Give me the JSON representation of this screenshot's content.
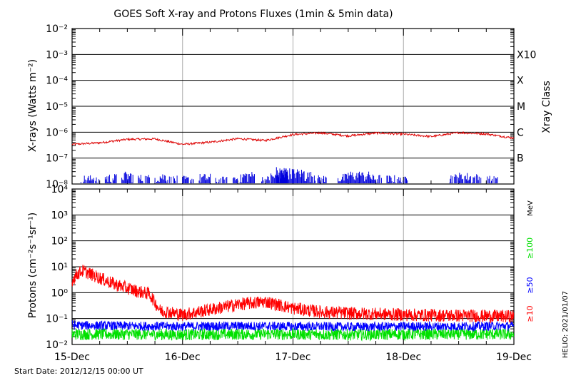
{
  "title": "GOES Soft X-ray and Protons Fluxes   (1min & 5min data)",
  "start_date": "Start Date: 2012/12/15 00:00 UT",
  "credit": "HELIO: 2021/01/07",
  "colors": {
    "background": "#ffffff",
    "axis": "#000000",
    "day_grid": "#aaaaaa",
    "xray_long": "#dd0000",
    "xray_short": "#0000dd",
    "p10": "#ff0000",
    "p50": "#0000ff",
    "p100": "#00e000"
  },
  "chart_data": [
    {
      "type": "line",
      "title": "GOES Soft X-ray and Protons Fluxes   (1min & 5min data)",
      "ylabel": "X-rays (Watts m⁻²)",
      "ylabel_right": "Xray Class",
      "yscale": "log",
      "ylim": [
        1e-08,
        0.01
      ],
      "x_range": [
        "2012-12-15",
        "2012-12-19"
      ],
      "y_tick_labels": [
        "10⁻⁸",
        "10⁻⁷",
        "10⁻⁶",
        "10⁻⁵",
        "10⁻⁴",
        "10⁻³",
        "10⁻²"
      ],
      "flare_classes": [
        {
          "label": "B",
          "level": 1e-07
        },
        {
          "label": "C",
          "level": 1e-06
        },
        {
          "label": "M",
          "level": 1e-05
        },
        {
          "label": "X",
          "level": 0.0001
        },
        {
          "label": "X10",
          "level": 0.001
        }
      ],
      "series": [
        {
          "color": "#dd0000",
          "x": [
            0.0,
            0.25,
            0.5,
            0.75,
            1.0,
            1.25,
            1.5,
            1.75,
            2.0,
            2.25,
            2.5,
            2.75,
            3.0,
            3.25,
            3.5,
            3.75,
            4.0
          ],
          "y": [
            3.4e-07,
            3.9e-07,
            5.3e-07,
            5.5e-07,
            3.4e-07,
            4.1e-07,
            5.6e-07,
            4.8e-07,
            8.1e-07,
            9.4e-07,
            7.2e-07,
            9.3e-07,
            8.4e-07,
            6.8e-07,
            9.6e-07,
            8.6e-07,
            5.9e-07
          ]
        },
        {
          "color": "#0000dd",
          "x": [
            0.08,
            0.15,
            0.3,
            0.45,
            0.6,
            0.75,
            0.85,
            1.0,
            1.15,
            1.3,
            1.45,
            1.55,
            1.7,
            1.8,
            1.85,
            1.9,
            2.0,
            2.1,
            2.2,
            2.4,
            2.5,
            2.6,
            2.7,
            2.85,
            2.95,
            3.4,
            3.5,
            3.6,
            3.75
          ],
          "y": [
            1.6e-08,
            1.3e-08,
            1.8e-08,
            2.2e-08,
            1.7e-08,
            2e-08,
            1.5e-08,
            1.5e-08,
            1.8e-08,
            1.4e-08,
            1.7e-08,
            2.2e-08,
            1.5e-08,
            2e-08,
            3.3e-08,
            3e-08,
            2.8e-08,
            2.2e-08,
            1.6e-08,
            1.8e-08,
            2.3e-08,
            2.2e-08,
            1.7e-08,
            1.6e-08,
            1.4e-08,
            1.8e-08,
            2e-08,
            1.8e-08,
            1.5e-08
          ]
        }
      ]
    },
    {
      "type": "line",
      "ylabel": "Protons (cm⁻²s⁻¹sr⁻¹)",
      "units": "MeV",
      "yscale": "log",
      "ylim": [
        0.01,
        10000
      ],
      "reference_level": 10,
      "y_tick_labels": [
        "10⁻²",
        "10⁻¹",
        "10⁰",
        "10¹",
        "10²",
        "10³",
        "10⁴"
      ],
      "x_tick_labels": [
        "15-Dec",
        "16-Dec",
        "17-Dec",
        "18-Dec",
        "19-Dec"
      ],
      "series": [
        {
          "name": "≥10",
          "color": "#ff0000",
          "x": [
            0.0,
            0.05,
            0.1,
            0.2,
            0.3,
            0.4,
            0.5,
            0.6,
            0.7,
            0.8,
            0.9,
            1.0,
            1.25,
            1.5,
            1.75,
            2.0,
            2.25,
            2.5,
            2.75,
            3.0,
            3.5,
            4.0
          ],
          "y": [
            3.0,
            5.5,
            7.0,
            4.5,
            3.0,
            2.0,
            1.5,
            1.1,
            0.9,
            0.2,
            0.17,
            0.14,
            0.22,
            0.35,
            0.45,
            0.25,
            0.18,
            0.16,
            0.15,
            0.14,
            0.13,
            0.12
          ]
        },
        {
          "name": "≥50",
          "color": "#0000ff",
          "x": [
            0.0,
            0.5,
            1.0,
            1.5,
            2.0,
            2.5,
            3.0,
            3.5,
            4.0
          ],
          "y": [
            0.055,
            0.052,
            0.05,
            0.052,
            0.05,
            0.048,
            0.05,
            0.05,
            0.052
          ]
        },
        {
          "name": "≥100",
          "color": "#00e000",
          "x": [
            0.0,
            0.5,
            1.0,
            1.5,
            2.0,
            2.5,
            3.0,
            3.5,
            4.0
          ],
          "y": [
            0.025,
            0.025,
            0.024,
            0.025,
            0.025,
            0.024,
            0.025,
            0.025,
            0.025
          ]
        }
      ]
    }
  ]
}
